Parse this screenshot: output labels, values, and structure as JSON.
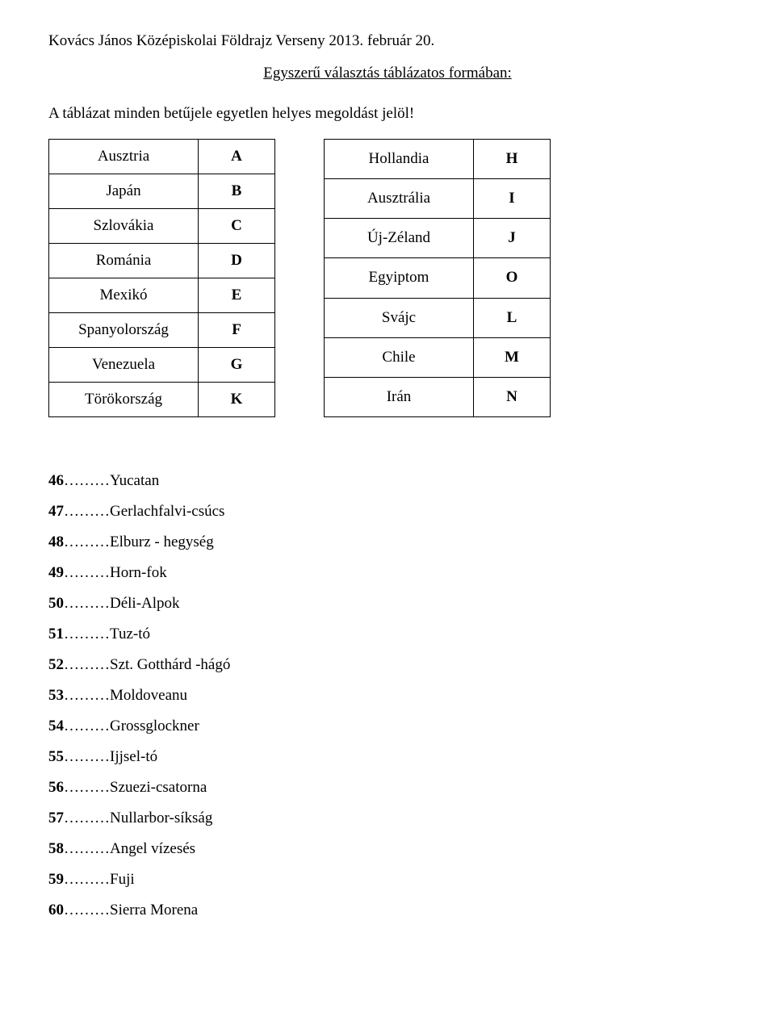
{
  "header": {
    "title": "Kovács János Középiskolai Földrajz Verseny 2013. február 20.",
    "subtitle": "Egyszerű választás táblázatos formában:",
    "instruction": "A táblázat minden betűjele egyetlen helyes megoldást jelöl!"
  },
  "tables": {
    "left": [
      {
        "name": "Ausztria",
        "letter": "A"
      },
      {
        "name": "Japán",
        "letter": "B"
      },
      {
        "name": "Szlovákia",
        "letter": "C"
      },
      {
        "name": "Románia",
        "letter": "D"
      },
      {
        "name": "Mexikó",
        "letter": "E"
      },
      {
        "name": "Spanyolország",
        "letter": "F"
      },
      {
        "name": "Venezuela",
        "letter": "G"
      },
      {
        "name": "Törökország",
        "letter": "K"
      }
    ],
    "right": [
      {
        "name": "Hollandia",
        "letter": "H"
      },
      {
        "name": "Ausztrália",
        "letter": "I"
      },
      {
        "name": "Új-Zéland",
        "letter": "J"
      },
      {
        "name": "Egyiptom",
        "letter": "O"
      },
      {
        "name": "Svájc",
        "letter": "L"
      },
      {
        "name": "Chile",
        "letter": "M"
      },
      {
        "name": "Irán",
        "letter": "N"
      }
    ]
  },
  "questions": [
    {
      "num": "46",
      "text": "………Yucatan"
    },
    {
      "num": "47",
      "text": "………Gerlachfalvi-csúcs"
    },
    {
      "num": "48",
      "text": "………Elburz - hegység"
    },
    {
      "num": "49",
      "text": "………Horn-fok"
    },
    {
      "num": "50",
      "text": "………Déli-Alpok"
    },
    {
      "num": "51",
      "text": "………Tuz-tó"
    },
    {
      "num": "52",
      "text": "………Szt. Gotthárd -hágó"
    },
    {
      "num": "53",
      "text": "………Moldoveanu"
    },
    {
      "num": "54",
      "text": "………Grossglockner"
    },
    {
      "num": "55",
      "text": "………Ijjsel-tó"
    },
    {
      "num": "56",
      "text": "………Szuezi-csatorna"
    },
    {
      "num": "57",
      "text": "………Nullarbor-síkság"
    },
    {
      "num": "58",
      "text": "………Angel vízesés"
    },
    {
      "num": "59",
      "text": "………Fuji"
    },
    {
      "num": "60",
      "text": "………Sierra Morena"
    }
  ]
}
